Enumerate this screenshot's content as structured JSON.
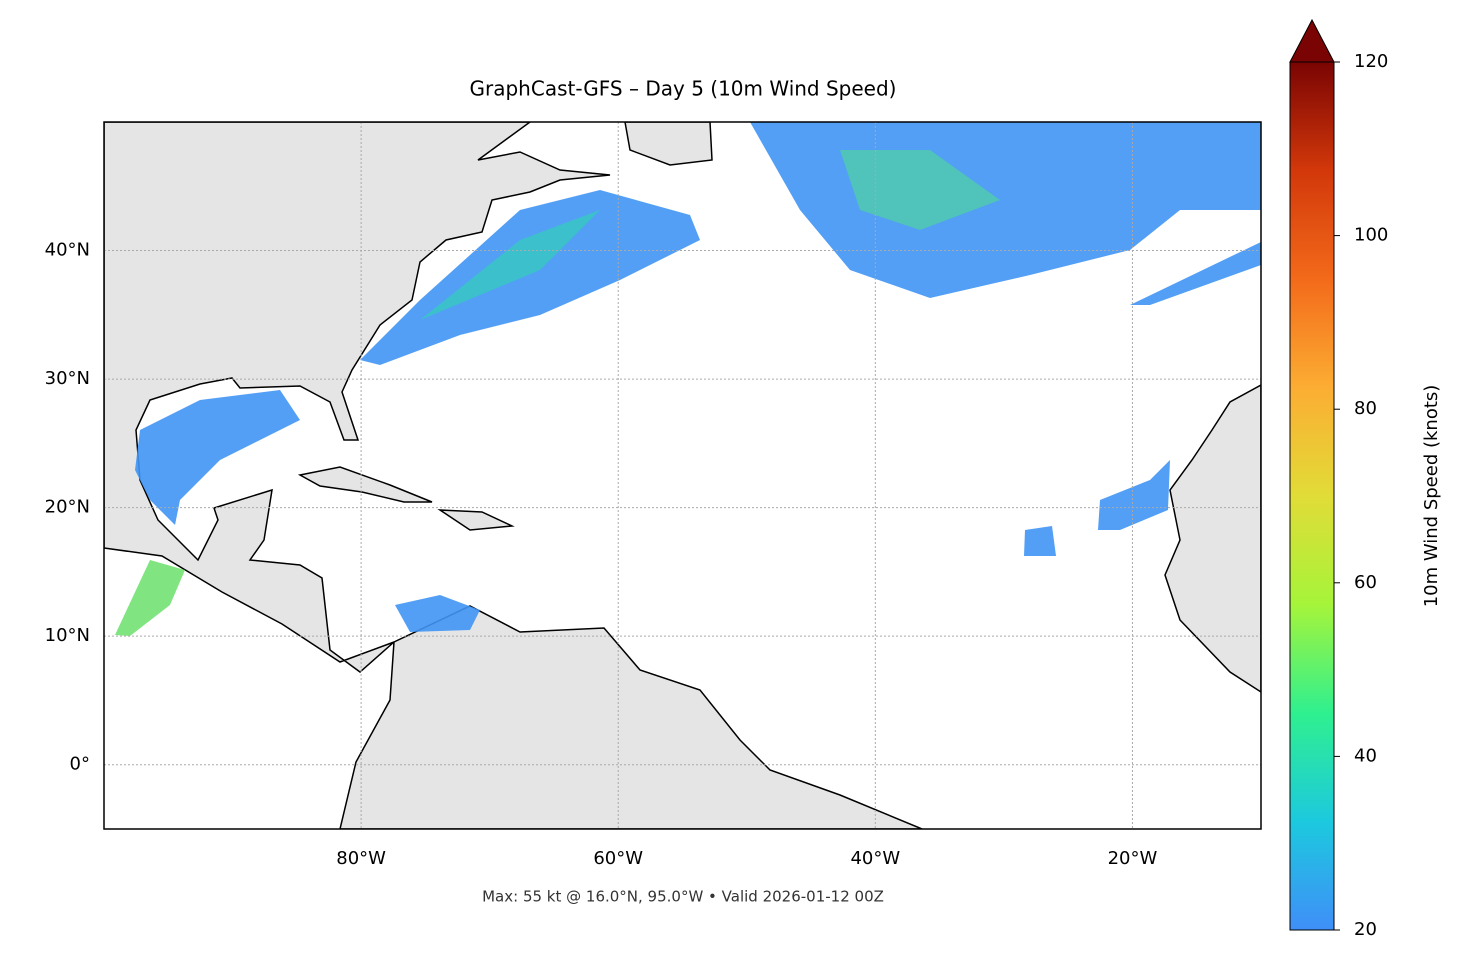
{
  "chart_data": {
    "type": "map",
    "title": "GraphCast-GFS – Day 5 (10m Wind Speed)",
    "footnote": "Max: 55 kt @ 16.0°N, 95.0°W • Valid 2026-01-12 00Z",
    "xlim": [
      -100,
      -10
    ],
    "ylim": [
      -5,
      50
    ],
    "xticks": [
      {
        "value": -80,
        "label": "80°W"
      },
      {
        "value": -60,
        "label": "60°W"
      },
      {
        "value": -40,
        "label": "40°W"
      },
      {
        "value": -20,
        "label": "20°W"
      }
    ],
    "yticks": [
      {
        "value": 0,
        "label": "0°"
      },
      {
        "value": 10,
        "label": "10°N"
      },
      {
        "value": 20,
        "label": "20°N"
      },
      {
        "value": 30,
        "label": "30°N"
      },
      {
        "value": 40,
        "label": "40°N"
      }
    ],
    "grid": true,
    "colorbar": {
      "label": "10m Wind Speed (knots)",
      "clim": [
        20,
        120
      ],
      "ticks": [
        20,
        40,
        60,
        80,
        100,
        120
      ],
      "extend": "max",
      "colors": [
        "#3f8ff8",
        "#1cc9de",
        "#2ff08f",
        "#a6f43a",
        "#e1dc37",
        "#fcad33",
        "#f36a1a",
        "#d2380a",
        "#7a0403"
      ]
    }
  }
}
